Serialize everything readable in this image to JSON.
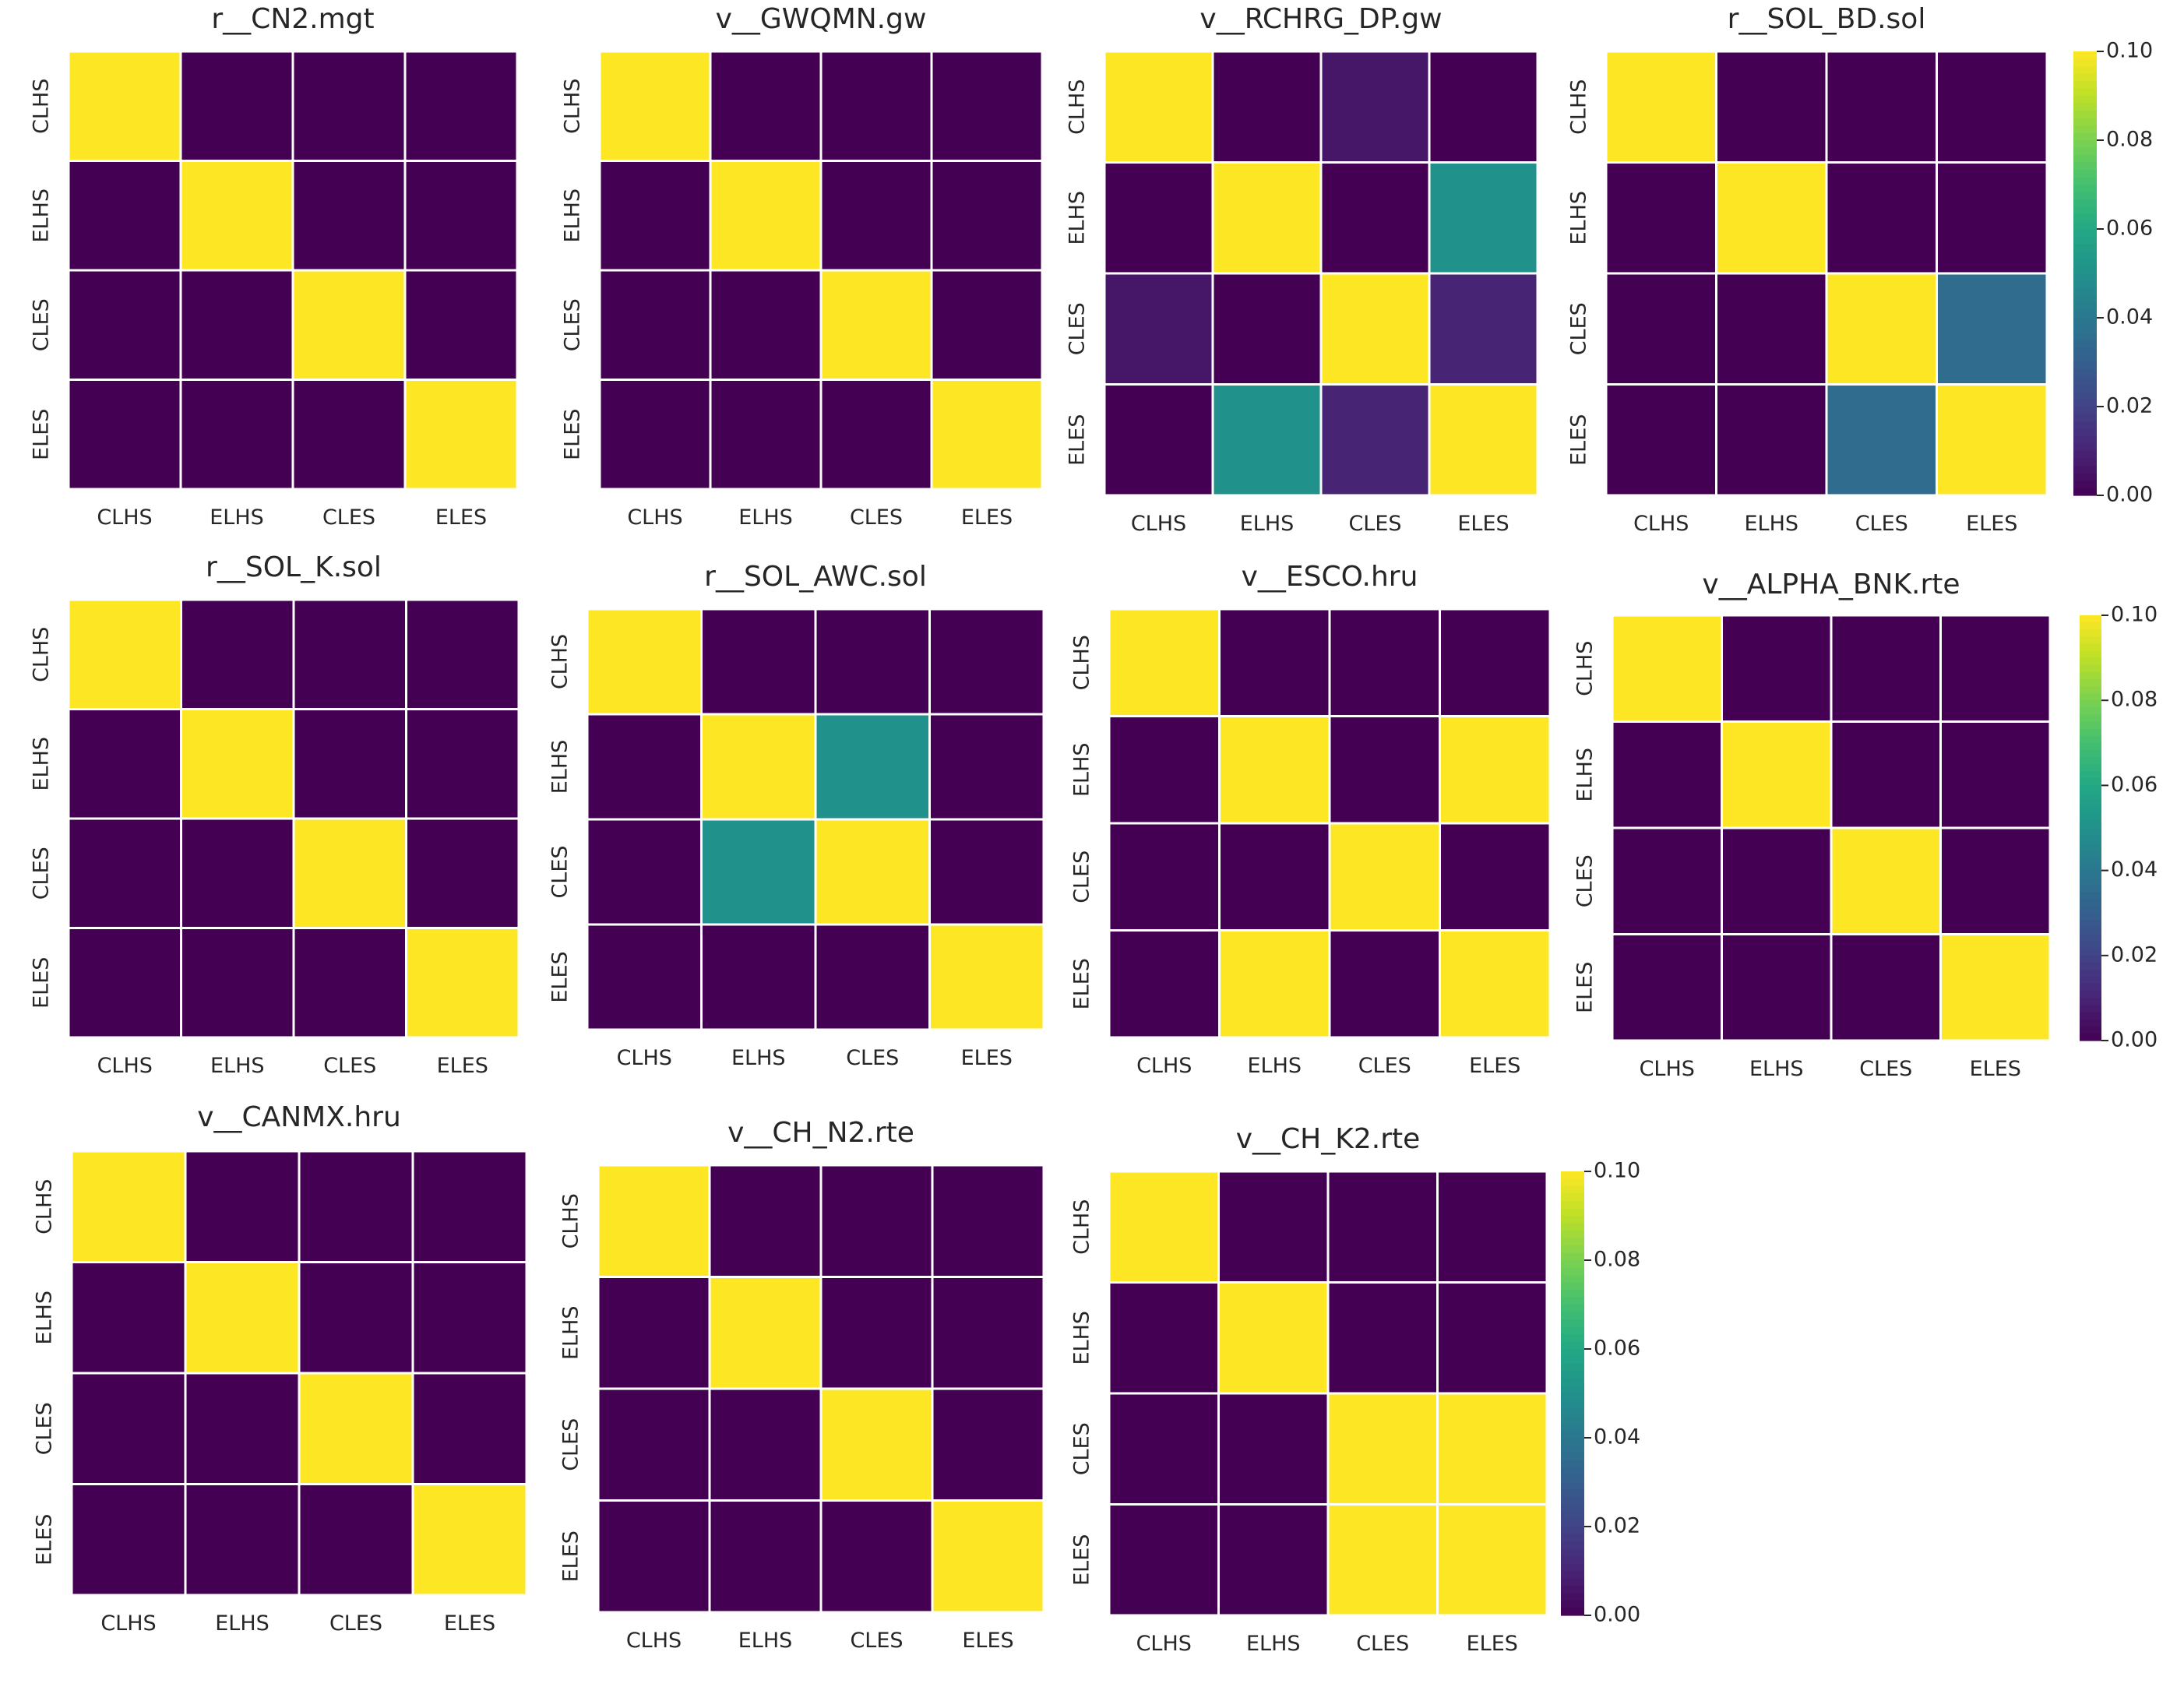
{
  "figure": {
    "description_note": "",
    "colormap": "viridis",
    "colorbar_ticks": [
      "0.00",
      "0.02",
      "0.04",
      "0.06",
      "0.08",
      "0.10"
    ]
  },
  "chart_data": [
    {
      "type": "heatmap",
      "title": "r__CN2.mgt",
      "x_labels": [
        "CLHS",
        "ELHS",
        "CLES",
        "ELES"
      ],
      "y_labels": [
        "CLHS",
        "ELHS",
        "CLES",
        "ELES"
      ],
      "vmin": 0.0,
      "vmax": 0.1,
      "values": [
        [
          0.1,
          0,
          0,
          0
        ],
        [
          0,
          0.1,
          0,
          0
        ],
        [
          0,
          0,
          0.1,
          0
        ],
        [
          0,
          0,
          0,
          0.1
        ]
      ]
    },
    {
      "type": "heatmap",
      "title": "v__GWQMN.gw",
      "x_labels": [
        "CLHS",
        "ELHS",
        "CLES",
        "ELES"
      ],
      "y_labels": [
        "CLHS",
        "ELHS",
        "CLES",
        "ELES"
      ],
      "vmin": 0.0,
      "vmax": 0.1,
      "values": [
        [
          0.1,
          0,
          0,
          0
        ],
        [
          0,
          0.1,
          0,
          0
        ],
        [
          0,
          0,
          0.1,
          0
        ],
        [
          0,
          0,
          0,
          0.1
        ]
      ]
    },
    {
      "type": "heatmap",
      "title": "v__RCHRG_DP.gw",
      "x_labels": [
        "CLHS",
        "ELHS",
        "CLES",
        "ELES"
      ],
      "y_labels": [
        "CLHS",
        "ELHS",
        "CLES",
        "ELES"
      ],
      "vmin": 0.0,
      "vmax": 0.1,
      "values": [
        [
          0.1,
          0,
          0.006,
          0
        ],
        [
          0,
          0.1,
          0,
          0.05
        ],
        [
          0.006,
          0,
          0.1,
          0.01
        ],
        [
          0,
          0.05,
          0.01,
          0.1
        ]
      ]
    },
    {
      "type": "heatmap",
      "title": "r__SOL_BD.sol",
      "x_labels": [
        "CLHS",
        "ELHS",
        "CLES",
        "ELES"
      ],
      "y_labels": [
        "CLHS",
        "ELHS",
        "CLES",
        "ELES"
      ],
      "vmin": 0.0,
      "vmax": 0.1,
      "values": [
        [
          0.1,
          0,
          0,
          0
        ],
        [
          0,
          0.1,
          0,
          0
        ],
        [
          0,
          0,
          0.1,
          0.035
        ],
        [
          0,
          0,
          0.035,
          0.1
        ]
      ]
    },
    {
      "type": "heatmap",
      "title": "r__SOL_K.sol",
      "x_labels": [
        "CLHS",
        "ELHS",
        "CLES",
        "ELES"
      ],
      "y_labels": [
        "CLHS",
        "ELHS",
        "CLES",
        "ELES"
      ],
      "vmin": 0.0,
      "vmax": 0.1,
      "values": [
        [
          0.1,
          0,
          0,
          0
        ],
        [
          0,
          0.1,
          0,
          0
        ],
        [
          0,
          0,
          0.1,
          0
        ],
        [
          0,
          0,
          0,
          0.1
        ]
      ]
    },
    {
      "type": "heatmap",
      "title": "r__SOL_AWC.sol",
      "x_labels": [
        "CLHS",
        "ELHS",
        "CLES",
        "ELES"
      ],
      "y_labels": [
        "CLHS",
        "ELHS",
        "CLES",
        "ELES"
      ],
      "vmin": 0.0,
      "vmax": 0.1,
      "values": [
        [
          0.1,
          0,
          0,
          0
        ],
        [
          0,
          0.1,
          0.05,
          0
        ],
        [
          0,
          0.05,
          0.1,
          0
        ],
        [
          0,
          0,
          0,
          0.1
        ]
      ]
    },
    {
      "type": "heatmap",
      "title": "v__ESCO.hru",
      "x_labels": [
        "CLHS",
        "ELHS",
        "CLES",
        "ELES"
      ],
      "y_labels": [
        "CLHS",
        "ELHS",
        "CLES",
        "ELES"
      ],
      "vmin": 0.0,
      "vmax": 0.1,
      "values": [
        [
          0.1,
          0,
          0,
          0
        ],
        [
          0,
          0.1,
          0,
          0.1
        ],
        [
          0,
          0,
          0.1,
          0
        ],
        [
          0,
          0.1,
          0,
          0.1
        ]
      ]
    },
    {
      "type": "heatmap",
      "title": "v__ALPHA_BNK.rte",
      "x_labels": [
        "CLHS",
        "ELHS",
        "CLES",
        "ELES"
      ],
      "y_labels": [
        "CLHS",
        "ELHS",
        "CLES",
        "ELES"
      ],
      "vmin": 0.0,
      "vmax": 0.1,
      "values": [
        [
          0.1,
          0,
          0,
          0
        ],
        [
          0,
          0.1,
          0,
          0
        ],
        [
          0,
          0,
          0.1,
          0
        ],
        [
          0,
          0,
          0,
          0.1
        ]
      ]
    },
    {
      "type": "heatmap",
      "title": "v__CANMX.hru",
      "x_labels": [
        "CLHS",
        "ELHS",
        "CLES",
        "ELES"
      ],
      "y_labels": [
        "CLHS",
        "ELHS",
        "CLES",
        "ELES"
      ],
      "vmin": 0.0,
      "vmax": 0.1,
      "values": [
        [
          0.1,
          0,
          0,
          0
        ],
        [
          0,
          0.1,
          0,
          0
        ],
        [
          0,
          0,
          0.1,
          0
        ],
        [
          0,
          0,
          0,
          0.1
        ]
      ]
    },
    {
      "type": "heatmap",
      "title": "v__CH_N2.rte",
      "x_labels": [
        "CLHS",
        "ELHS",
        "CLES",
        "ELES"
      ],
      "y_labels": [
        "CLHS",
        "ELHS",
        "CLES",
        "ELES"
      ],
      "vmin": 0.0,
      "vmax": 0.1,
      "values": [
        [
          0.1,
          0,
          0,
          0
        ],
        [
          0,
          0.1,
          0,
          0
        ],
        [
          0,
          0,
          0.1,
          0
        ],
        [
          0,
          0,
          0,
          0.1
        ]
      ]
    },
    {
      "type": "heatmap",
      "title": "v__CH_K2.rte",
      "x_labels": [
        "CLHS",
        "ELHS",
        "CLES",
        "ELES"
      ],
      "y_labels": [
        "CLHS",
        "ELHS",
        "CLES",
        "ELES"
      ],
      "vmin": 0.0,
      "vmax": 0.1,
      "values": [
        [
          0.1,
          0,
          0,
          0
        ],
        [
          0,
          0.1,
          0,
          0
        ],
        [
          0,
          0,
          0.1,
          0.1
        ],
        [
          0,
          0,
          0.1,
          0.1
        ]
      ]
    }
  ]
}
